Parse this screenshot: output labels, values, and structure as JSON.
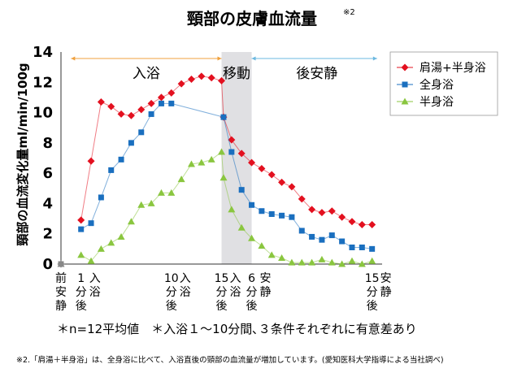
{
  "title": "頸部の皮膚血流量",
  "title_note": "※2",
  "chart_data": {
    "type": "line",
    "ylabel": "頸部の血流変化量ml/min/100g",
    "xlabel": "",
    "ylim": [
      0,
      14
    ],
    "yticks": [
      0,
      2,
      4,
      6,
      8,
      10,
      12,
      14
    ],
    "xlim": [
      -1,
      31
    ],
    "x_tick_labels": [
      {
        "x": -1,
        "lines": [
          "前",
          "安",
          "静"
        ]
      },
      {
        "x": 1,
        "lines": [
          "1",
          "分",
          "後"
        ],
        "suffix": "入",
        "suffix2": "浴"
      },
      {
        "x": 10,
        "lines": [
          "10",
          "分",
          "後"
        ],
        "suffix": "入",
        "suffix2": "浴"
      },
      {
        "x": 15,
        "lines": [
          "15",
          "分",
          "後"
        ],
        "suffix": "入",
        "suffix2": "浴"
      },
      {
        "x": 18,
        "lines": [
          "6",
          "分",
          "後"
        ],
        "suffix": "安",
        "suffix2": "静"
      },
      {
        "x": 30,
        "lines": [
          "15",
          "分",
          "後"
        ],
        "suffix": "安",
        "suffix2": "静"
      }
    ],
    "phases": [
      {
        "label": "入浴",
        "from": 0,
        "to": 15
      },
      {
        "label": "移動",
        "from": 15,
        "to": 18
      },
      {
        "label": "後安静",
        "from": 18,
        "to": 31
      }
    ],
    "shaded_region": [
      15,
      18
    ],
    "grid": false,
    "legend_position": "top-right",
    "series": [
      {
        "name": "肩湯+半身浴",
        "color": "#e3101f",
        "marker": "diamond",
        "x": [
          -1,
          1,
          2,
          3,
          4,
          5,
          6,
          7,
          8,
          9,
          10,
          11,
          12,
          13,
          14,
          15,
          15.2,
          16,
          17,
          18,
          19,
          20,
          21,
          22,
          23,
          24,
          25,
          26,
          27,
          28,
          29,
          30
        ],
        "values": [
          0,
          2.9,
          6.8,
          10.7,
          10.4,
          9.9,
          9.8,
          10.2,
          10.6,
          11.0,
          11.3,
          11.9,
          12.2,
          12.4,
          12.3,
          12.1,
          9.7,
          8.2,
          7.3,
          6.7,
          6.3,
          5.9,
          5.4,
          5.1,
          4.3,
          3.6,
          3.4,
          3.5,
          3.1,
          2.8,
          2.6,
          2.6
        ]
      },
      {
        "name": "全身浴",
        "color": "#1a6fbf",
        "marker": "square",
        "x": [
          -1,
          1,
          2,
          3,
          4,
          5,
          6,
          7,
          8,
          9,
          10,
          15.2,
          16,
          17,
          18,
          19,
          20,
          21,
          22,
          23,
          24,
          25,
          26,
          27,
          28,
          29,
          30
        ],
        "values": [
          0,
          2.3,
          2.7,
          4.4,
          6.2,
          6.9,
          8.0,
          8.7,
          9.9,
          10.6,
          10.6,
          9.7,
          7.4,
          4.9,
          3.9,
          3.5,
          3.3,
          3.2,
          3.1,
          2.2,
          1.8,
          1.6,
          1.9,
          1.5,
          1.1,
          1.1,
          1.0
        ]
      },
      {
        "name": "半身浴",
        "color": "#8ac63f",
        "marker": "triangle",
        "x": [
          -1,
          1,
          2,
          3,
          4,
          5,
          6,
          7,
          8,
          9,
          10,
          11,
          12,
          13,
          14,
          15,
          15.2,
          16,
          17,
          18,
          19,
          20,
          21,
          22,
          23,
          24,
          25,
          26,
          27,
          28,
          29,
          30
        ],
        "values": [
          0,
          0.6,
          0.2,
          1.0,
          1.4,
          1.8,
          2.8,
          3.9,
          4.0,
          4.7,
          4.7,
          5.6,
          6.6,
          6.7,
          6.9,
          7.4,
          5.7,
          3.6,
          2.4,
          1.7,
          1.2,
          0.6,
          0.4,
          0.1,
          0.1,
          0.1,
          0.3,
          0.1,
          0.0,
          0.2,
          0.0,
          0.2
        ]
      }
    ]
  },
  "note": "＊n=12平均値　＊入浴１〜10分間､３条件それぞれに有意差あり",
  "footnote": "※2.「肩湯＋半身浴」は、全身浴に比べて、入浴直後の頸部の血流量が増加しています。(愛知医科大学指導による当社調べ)"
}
